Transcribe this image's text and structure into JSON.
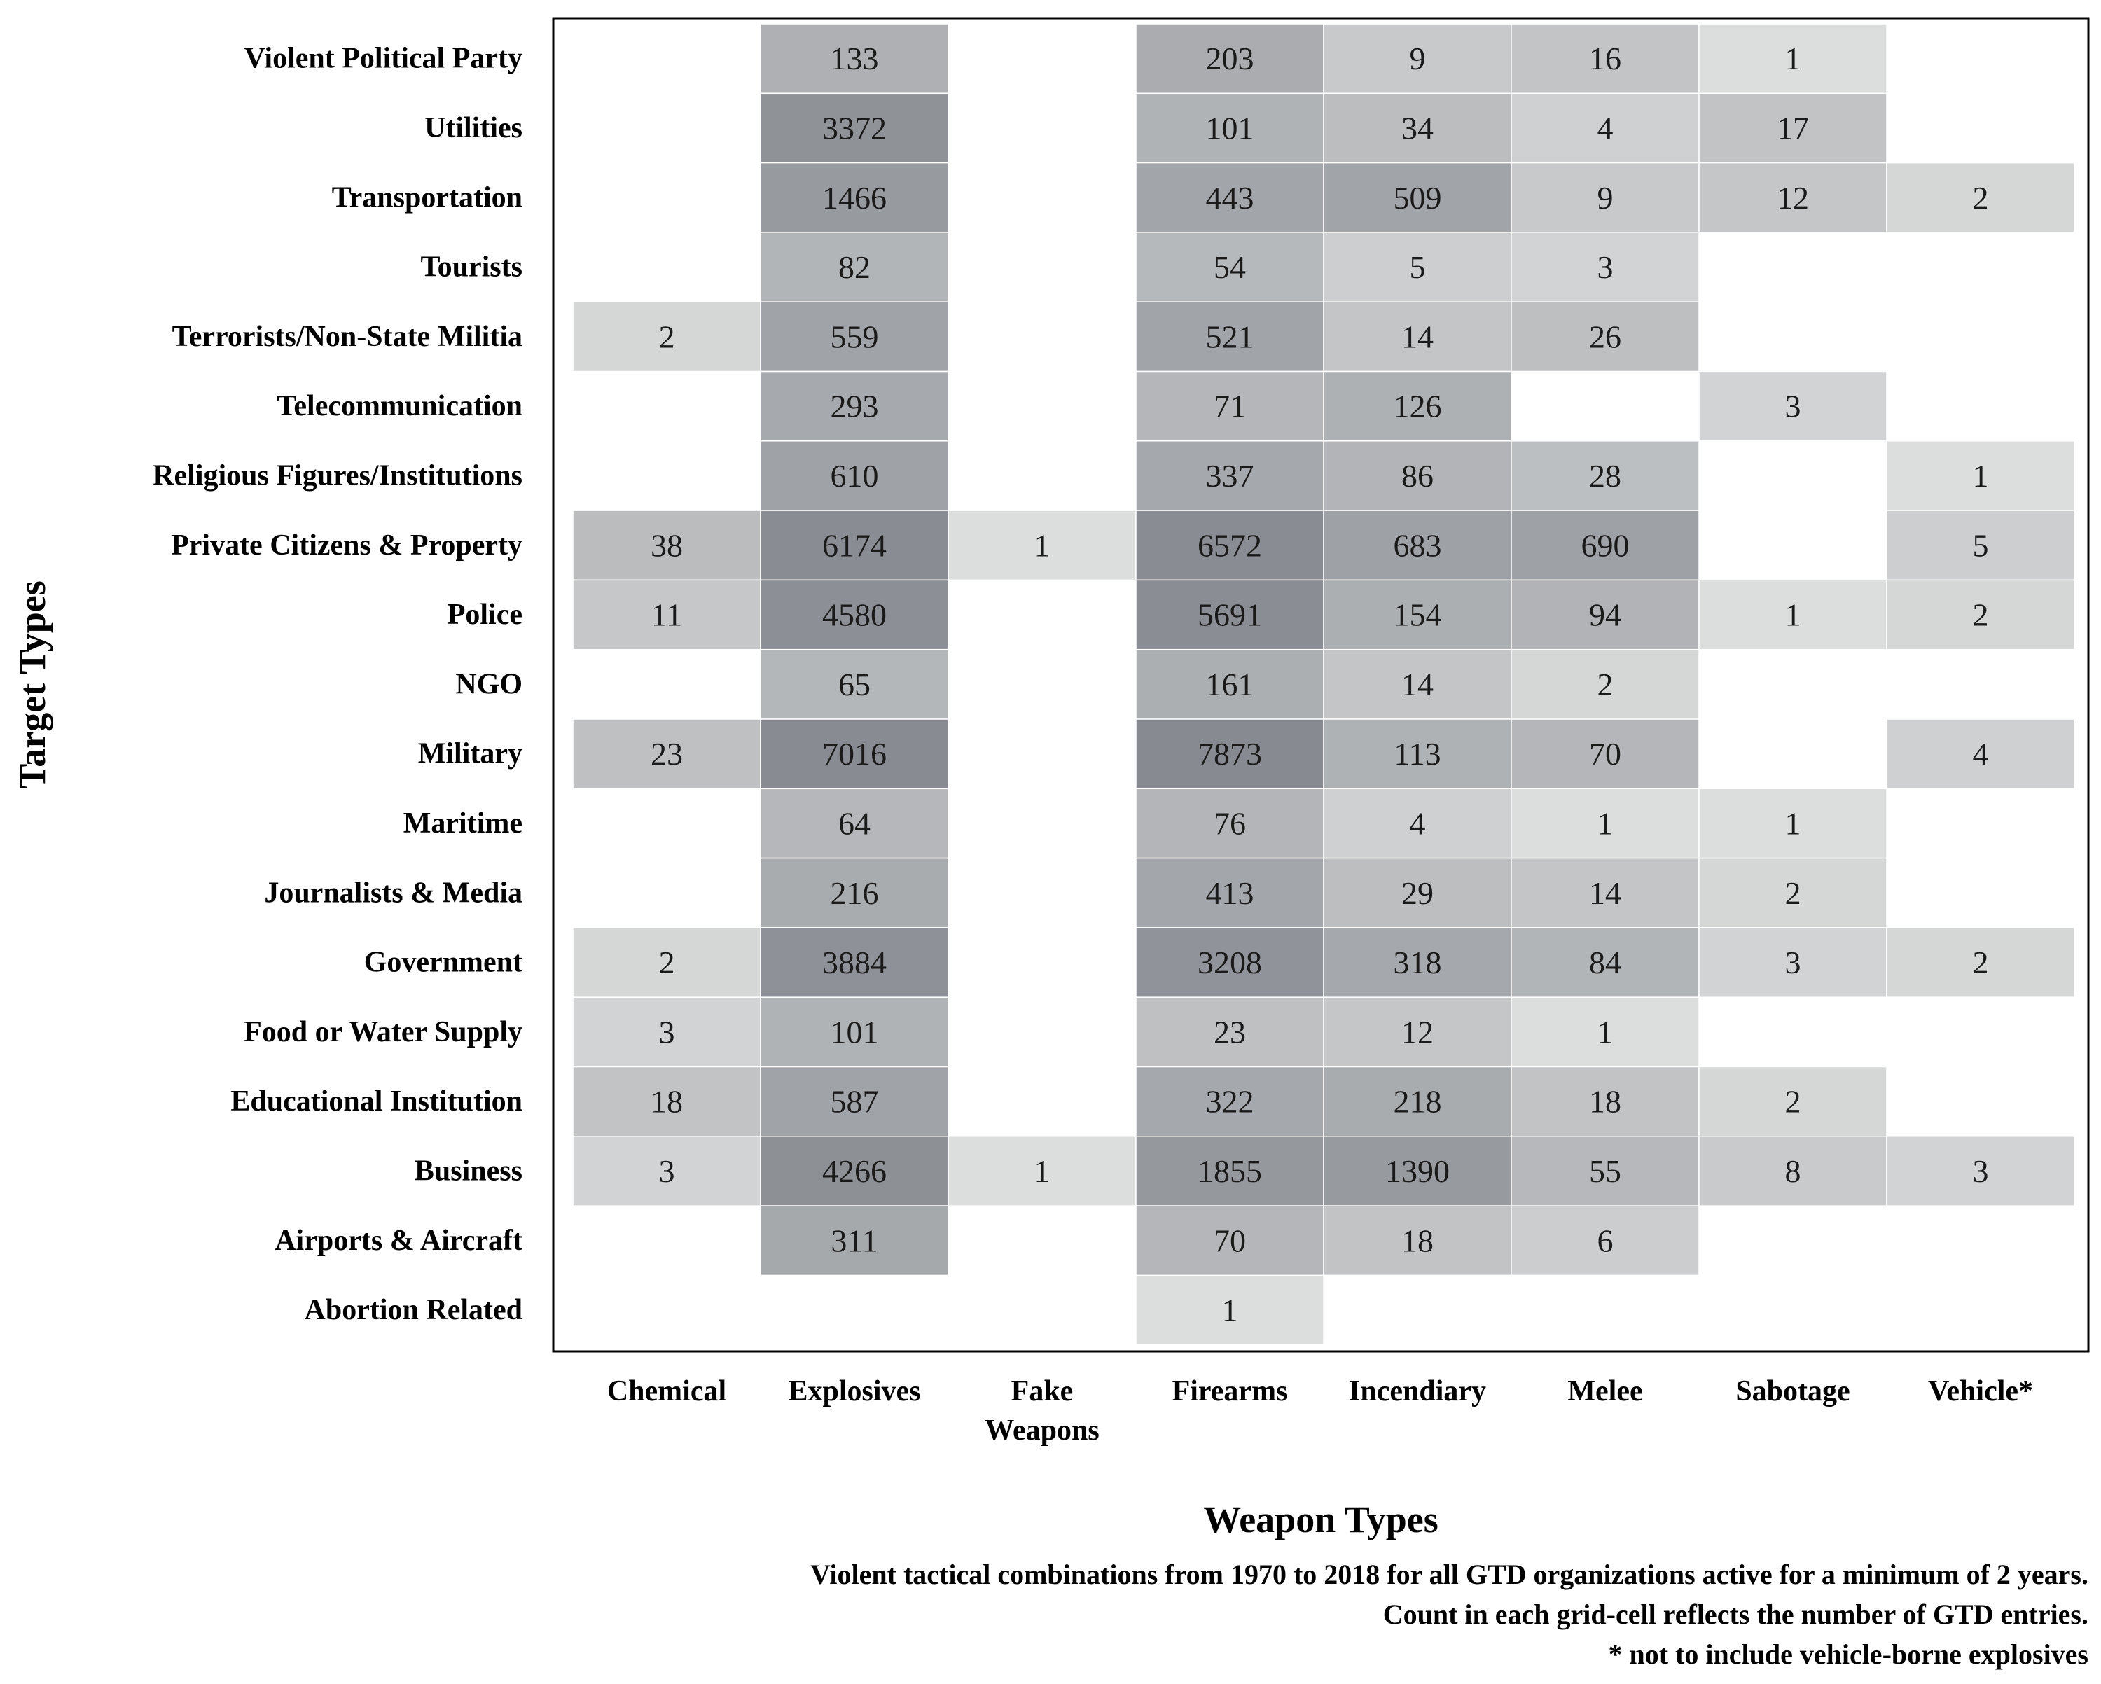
{
  "chart_data": {
    "type": "heatmap",
    "title": "",
    "xlabel": "Weapon Types",
    "ylabel": "Target Types",
    "columns": [
      [
        "Chemical"
      ],
      [
        "Explosives"
      ],
      [
        "Fake",
        "Weapons"
      ],
      [
        "Firearms"
      ],
      [
        "Incendiary"
      ],
      [
        "Melee"
      ],
      [
        "Sabotage"
      ],
      [
        "Vehicle*"
      ]
    ],
    "rows": [
      "Violent Political Party",
      "Utilities",
      "Transportation",
      "Tourists",
      "Terrorists/Non-State Militia",
      "Telecommunication",
      "Religious Figures/Institutions",
      "Private Citizens & Property",
      "Police",
      "NGO",
      "Military",
      "Maritime",
      "Journalists & Media",
      "Government",
      "Food or Water Supply",
      "Educational Institution",
      "Business",
      "Airports & Aircraft",
      "Abortion Related"
    ],
    "values": [
      [
        null,
        133,
        null,
        203,
        9,
        16,
        1,
        null
      ],
      [
        null,
        3372,
        null,
        101,
        34,
        4,
        17,
        null
      ],
      [
        null,
        1466,
        null,
        443,
        509,
        9,
        12,
        2
      ],
      [
        null,
        82,
        null,
        54,
        5,
        3,
        null,
        null
      ],
      [
        2,
        559,
        null,
        521,
        14,
        26,
        null,
        null
      ],
      [
        null,
        293,
        null,
        71,
        126,
        null,
        3,
        null
      ],
      [
        null,
        610,
        null,
        337,
        86,
        28,
        null,
        1
      ],
      [
        38,
        6174,
        1,
        6572,
        683,
        690,
        null,
        5
      ],
      [
        11,
        4580,
        null,
        5691,
        154,
        94,
        1,
        2
      ],
      [
        null,
        65,
        null,
        161,
        14,
        2,
        null,
        null
      ],
      [
        23,
        7016,
        null,
        7873,
        113,
        70,
        null,
        4
      ],
      [
        null,
        64,
        null,
        76,
        4,
        1,
        1,
        null
      ],
      [
        null,
        216,
        null,
        413,
        29,
        14,
        2,
        null
      ],
      [
        2,
        3884,
        null,
        3208,
        318,
        84,
        3,
        2
      ],
      [
        3,
        101,
        null,
        23,
        12,
        1,
        null,
        null
      ],
      [
        18,
        587,
        null,
        322,
        218,
        18,
        2,
        null
      ],
      [
        3,
        4266,
        1,
        1855,
        1390,
        55,
        8,
        3
      ],
      [
        null,
        311,
        null,
        70,
        18,
        6,
        null,
        null
      ],
      [
        null,
        null,
        null,
        1,
        null,
        null,
        null,
        null
      ]
    ],
    "color_scale": "log",
    "color_light": "#dcdddd",
    "color_dark": "#878b91",
    "grid": false,
    "legend": "none",
    "caption": [
      "Violent tactical combinations from 1970 to 2018 for all GTD organizations active for a minimum of 2 years.",
      "Count in each grid-cell reflects the number of GTD entries.",
      "* not to include vehicle-borne explosives"
    ]
  }
}
